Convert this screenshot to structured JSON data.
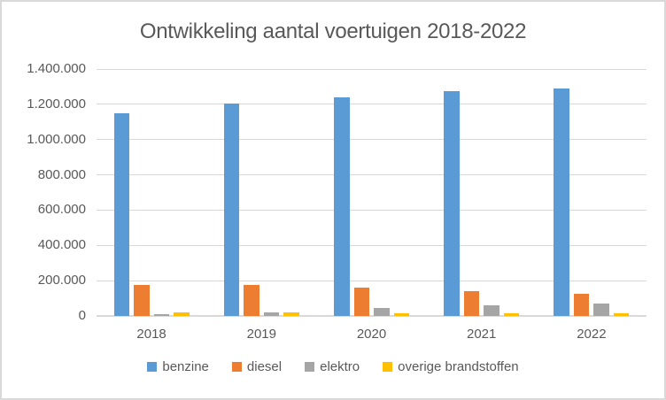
{
  "chart_data": {
    "type": "bar",
    "title": "Ontwikkeling aantal voertuigen 2018-2022",
    "categories": [
      "2018",
      "2019",
      "2020",
      "2021",
      "2022"
    ],
    "series": [
      {
        "name": "benzine",
        "color": "#5B9BD5",
        "values": [
          1150000,
          1205000,
          1240000,
          1275000,
          1290000
        ]
      },
      {
        "name": "diesel",
        "color": "#ED7D31",
        "values": [
          175000,
          175000,
          160000,
          140000,
          128000
        ]
      },
      {
        "name": "elektro",
        "color": "#A5A5A5",
        "values": [
          12000,
          22000,
          44000,
          58000,
          68000
        ]
      },
      {
        "name": "overige brandstoffen",
        "color": "#FFC000",
        "values": [
          22000,
          22000,
          17000,
          16000,
          16000
        ]
      }
    ],
    "ylim": [
      0,
      1400000
    ],
    "y_tick_step": 200000,
    "y_tick_labels": [
      "0",
      "200.000",
      "400.000",
      "600.000",
      "800.000",
      "1.000.000",
      "1.200.000",
      "1.400.000"
    ],
    "xlabel": "",
    "ylabel": "",
    "grid": true,
    "legend_position": "bottom",
    "colors": {
      "grid": "#D9D9D9",
      "axis_text": "#595959",
      "title_text": "#595959",
      "border": "#D9D9D9",
      "background": "#FFFFFF"
    }
  }
}
